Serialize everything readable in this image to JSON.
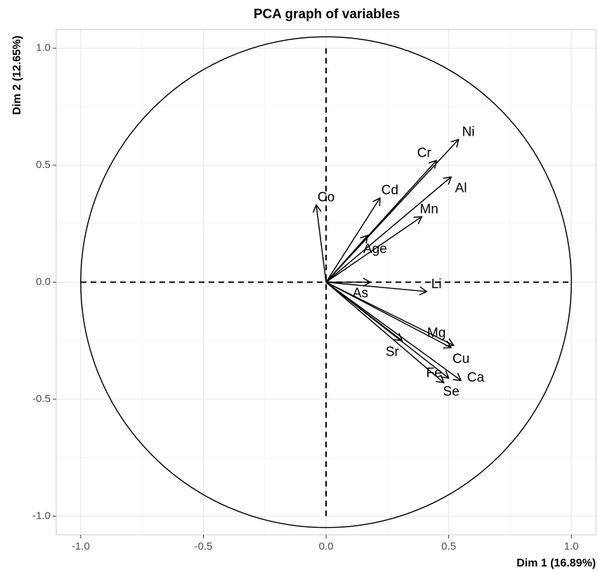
{
  "chart_data": {
    "type": "scatter",
    "title": "PCA graph of variables",
    "xlabel": "Dim 1 (16.89%)",
    "ylabel": "Dim 2 (12.65%)",
    "xlim": [
      -1.1,
      1.1
    ],
    "ylim": [
      -1.08,
      1.08
    ],
    "x_ticks": [
      -1.0,
      -0.5,
      0.0,
      0.5,
      1.0
    ],
    "y_ticks": [
      -1.0,
      -0.5,
      0.0,
      0.5,
      1.0
    ],
    "x_tick_labels": [
      "-1.0",
      "-0.5",
      "0.0",
      "0.5",
      "1.0"
    ],
    "y_tick_labels": [
      "-1.0",
      "-0.5",
      "0.0",
      "0.5",
      "1.0"
    ],
    "grid": true,
    "unit_circle": true,
    "variables": [
      {
        "name": "Ni",
        "x": 0.54,
        "y": 0.61,
        "label_x": 0.58,
        "label_y": 0.64
      },
      {
        "name": "Cr",
        "x": 0.45,
        "y": 0.52,
        "label_x": 0.4,
        "label_y": 0.55
      },
      {
        "name": "Al",
        "x": 0.51,
        "y": 0.45,
        "label_x": 0.55,
        "label_y": 0.4
      },
      {
        "name": "Cd",
        "x": 0.22,
        "y": 0.36,
        "label_x": 0.26,
        "label_y": 0.39
      },
      {
        "name": "Mn",
        "x": 0.39,
        "y": 0.28,
        "label_x": 0.42,
        "label_y": 0.31
      },
      {
        "name": "Co",
        "x": -0.04,
        "y": 0.33,
        "label_x": 0.0,
        "label_y": 0.36
      },
      {
        "name": "Age",
        "x": 0.17,
        "y": 0.2,
        "label_x": 0.2,
        "label_y": 0.14
      },
      {
        "name": "Li",
        "x": 0.41,
        "y": -0.04,
        "label_x": 0.45,
        "label_y": -0.01
      },
      {
        "name": "As",
        "x": 0.18,
        "y": 0.0,
        "label_x": 0.14,
        "label_y": -0.05
      },
      {
        "name": "Mg",
        "x": 0.52,
        "y": -0.27,
        "label_x": 0.45,
        "label_y": -0.22
      },
      {
        "name": "Cu",
        "x": 0.51,
        "y": -0.28,
        "label_x": 0.55,
        "label_y": -0.33
      },
      {
        "name": "Sr",
        "x": 0.31,
        "y": -0.25,
        "label_x": 0.27,
        "label_y": -0.3
      },
      {
        "name": "Fe",
        "x": 0.48,
        "y": -0.43,
        "label_x": 0.44,
        "label_y": -0.39
      },
      {
        "name": "Ca",
        "x": 0.55,
        "y": -0.42,
        "label_x": 0.61,
        "label_y": -0.41
      },
      {
        "name": "Se",
        "x": 0.5,
        "y": -0.41,
        "label_x": 0.51,
        "label_y": -0.47
      }
    ]
  }
}
